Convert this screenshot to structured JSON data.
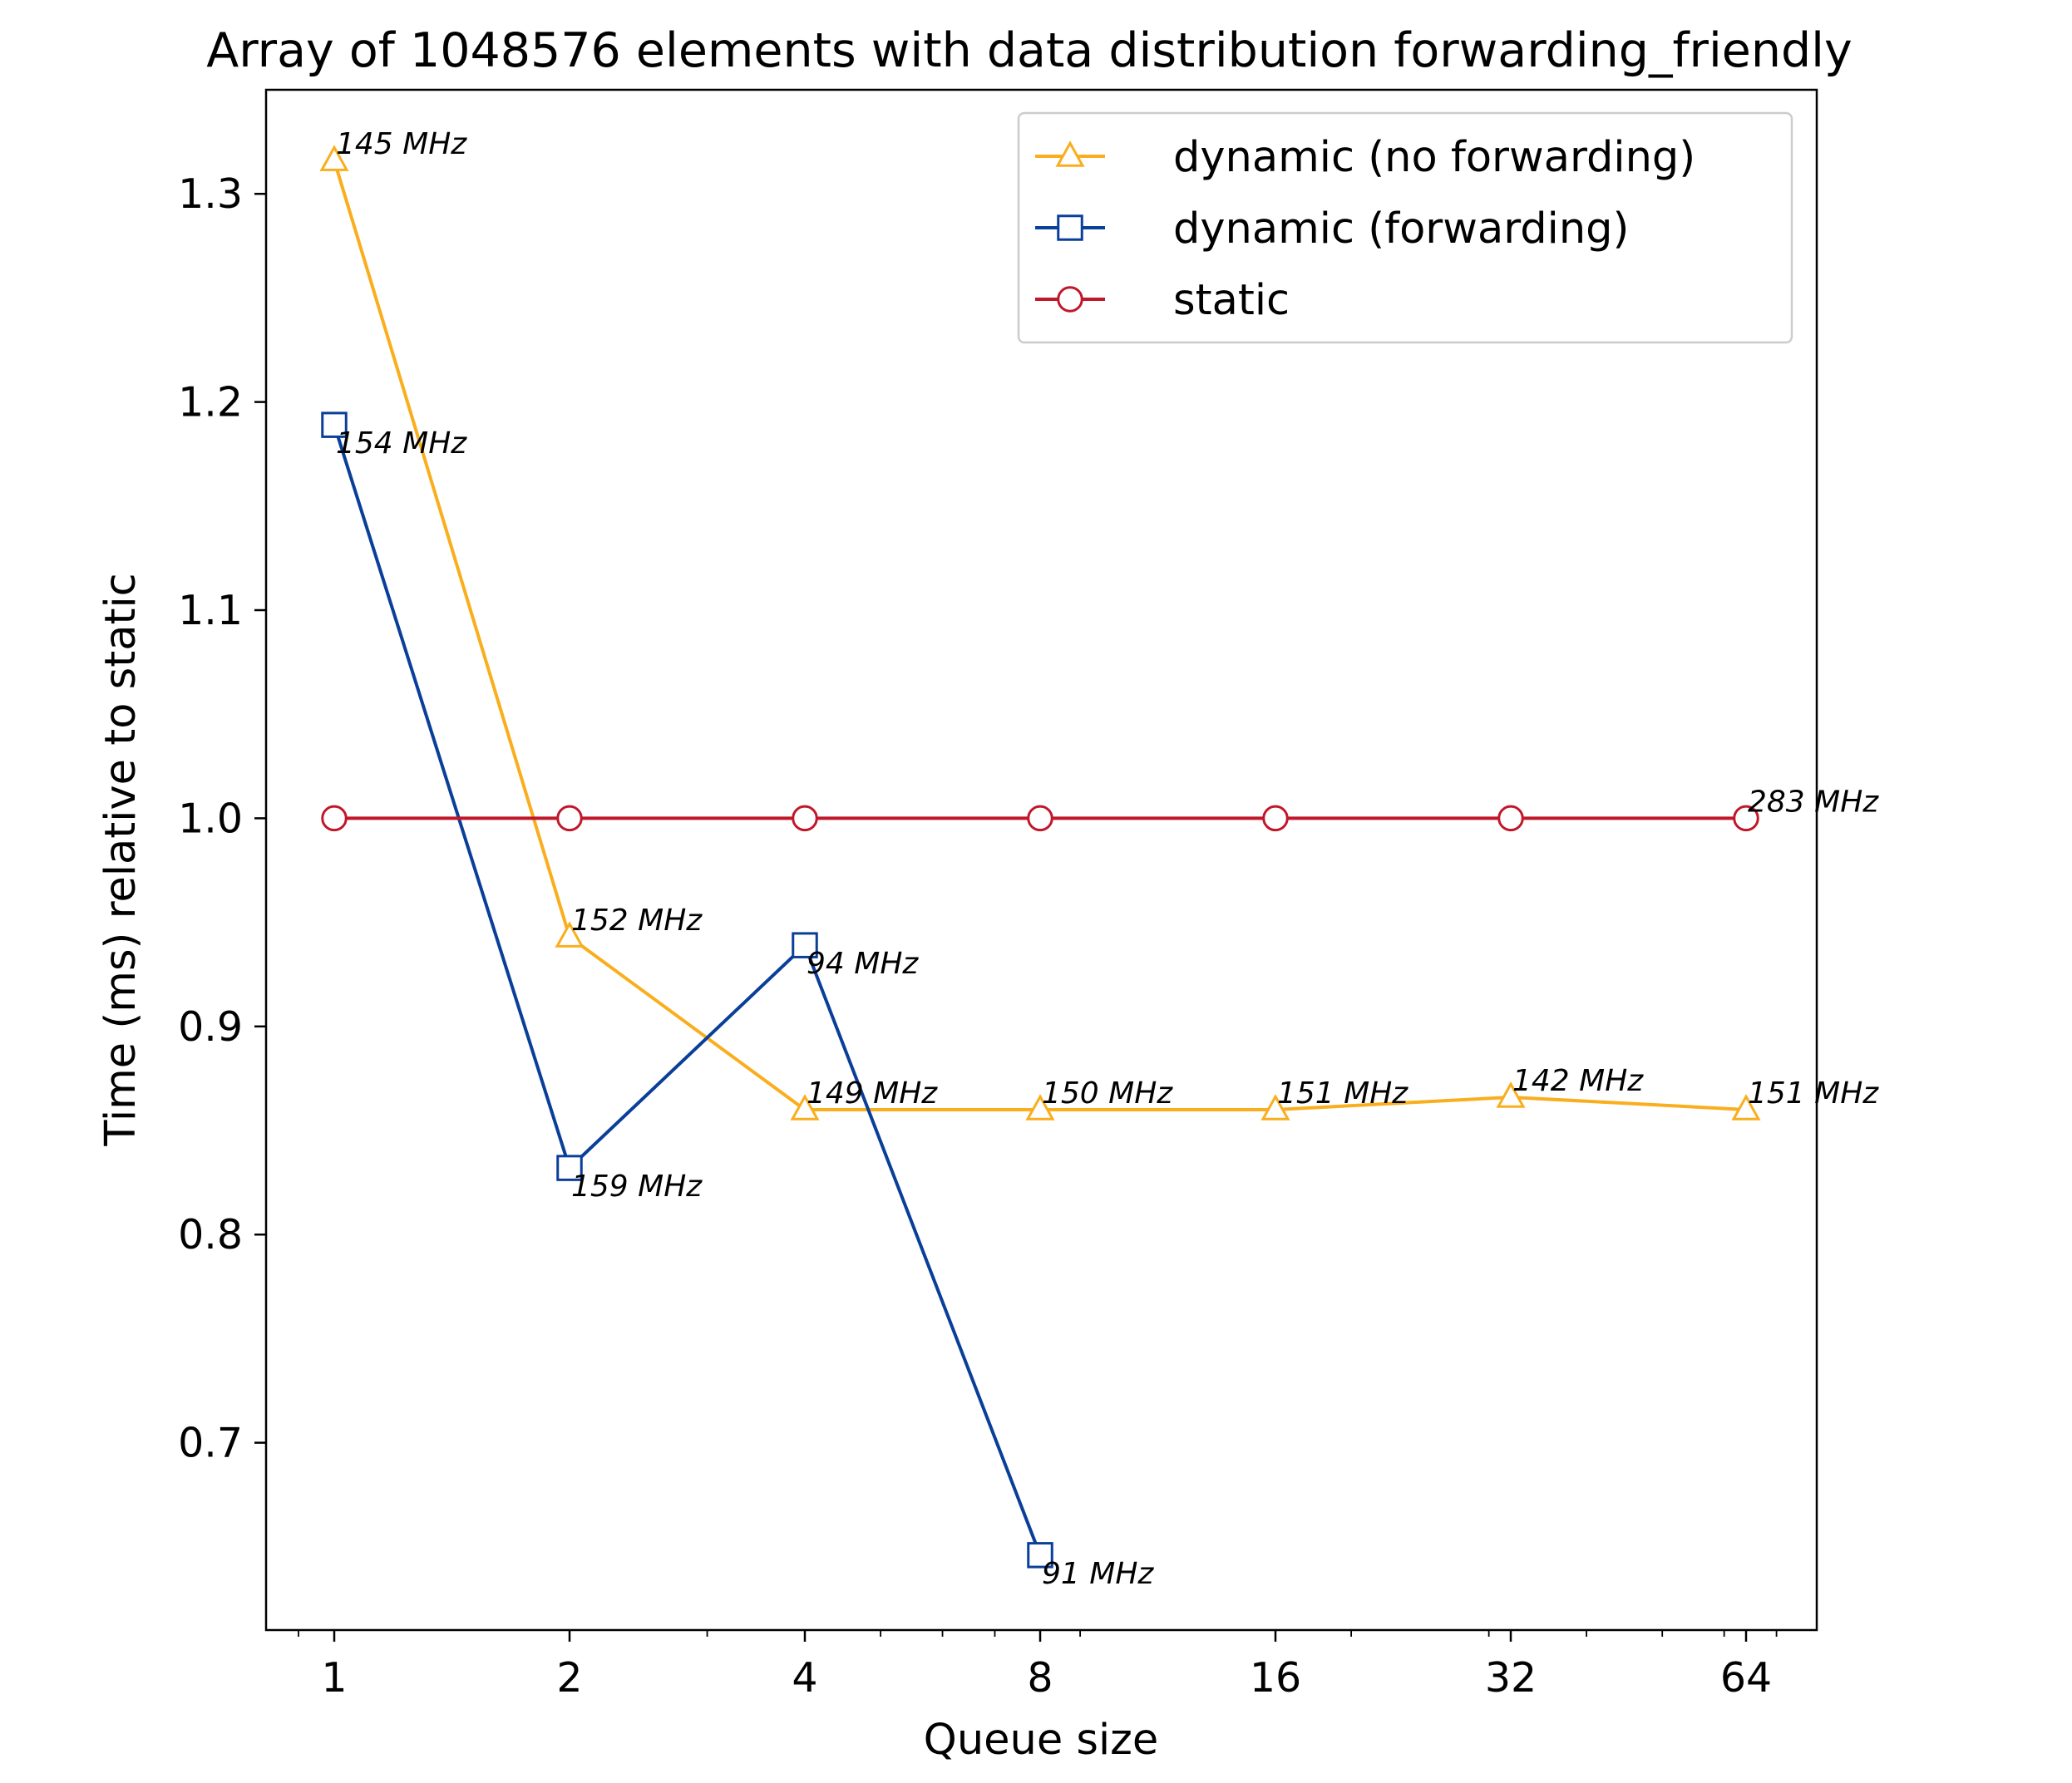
{
  "chart_data": {
    "type": "line",
    "title": "Array of 1048576 elements with data distribution forwarding_friendly",
    "xlabel": "Queue size",
    "ylabel": "Time (ms) relative to static",
    "x_scale": "log2",
    "x": [
      1,
      2,
      4,
      8,
      16,
      32,
      64
    ],
    "x_tick_labels": [
      "1",
      "2",
      "4",
      "8",
      "16",
      "32",
      "64"
    ],
    "y_ticks": [
      0.7,
      0.8,
      0.9,
      1.0,
      1.1,
      1.2,
      1.3
    ],
    "y_tick_labels": [
      "0.7",
      "0.8",
      "0.9",
      "1.0",
      "1.1",
      "1.2",
      "1.3"
    ],
    "ylim": [
      0.61,
      1.35
    ],
    "legend_position": "top-right",
    "series": [
      {
        "name": "dynamic (no forwarding)",
        "color": "#f9ae1e",
        "marker": "triangle",
        "x": [
          1,
          2,
          4,
          8,
          16,
          32,
          64
        ],
        "values": [
          1.316,
          0.943,
          0.86,
          0.86,
          0.86,
          0.866,
          0.86
        ],
        "labels": [
          "145 MHz",
          "152 MHz",
          "149 MHz",
          "150 MHz",
          "151 MHz",
          "142 MHz",
          "151 MHz"
        ],
        "label_side": [
          "above",
          "above",
          "above",
          "above",
          "above",
          "above",
          "above"
        ]
      },
      {
        "name": "dynamic (forwarding)",
        "color": "#0a3f99",
        "marker": "square",
        "x": [
          1,
          2,
          4,
          8
        ],
        "values": [
          1.189,
          0.832,
          0.939,
          0.646
        ],
        "labels": [
          "154 MHz",
          "159 MHz",
          "94 MHz",
          "91 MHz"
        ],
        "label_side": [
          "below",
          "below",
          "below",
          "below"
        ]
      },
      {
        "name": "static",
        "color": "#c0172a",
        "marker": "circle",
        "x": [
          1,
          2,
          4,
          8,
          16,
          32,
          64
        ],
        "values": [
          1.0,
          1.0,
          1.0,
          1.0,
          1.0,
          1.0,
          1.0
        ],
        "labels": [
          "",
          "",
          "",
          "",
          "",
          "",
          "283 MHz"
        ],
        "label_side": [
          "above",
          "above",
          "above",
          "above",
          "above",
          "above",
          "above"
        ]
      }
    ]
  }
}
